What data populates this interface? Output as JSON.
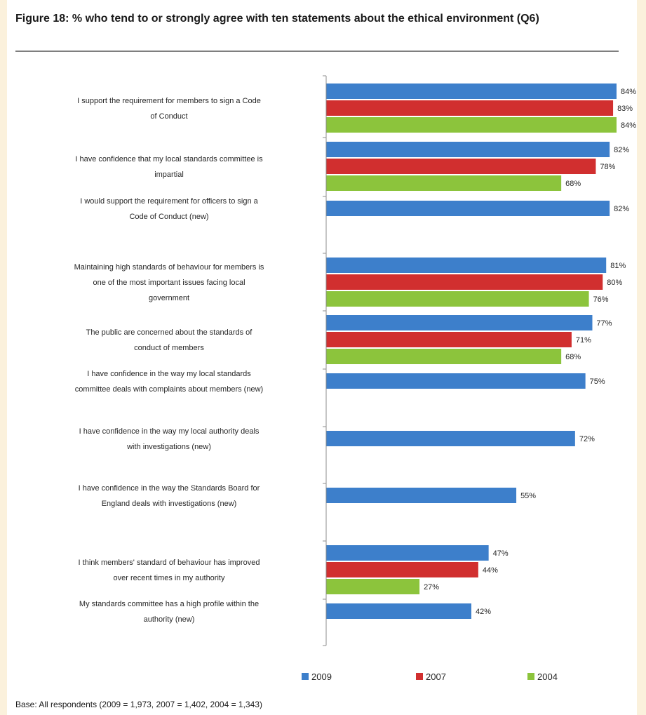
{
  "figure": {
    "title": "Figure 18: % who tend to or strongly agree with ten statements about the ethical environment (Q6)",
    "base_note": "Base: All respondents (2009 = 1,973, 2007 = 1,402, 2004 = 1,343)"
  },
  "chart_data": {
    "type": "bar",
    "orientation": "horizontal",
    "title": "Figure 18: % who tend to or strongly agree with ten statements about the ethical environment (Q6)",
    "xlabel": "",
    "ylabel": "",
    "xlim": [
      0,
      84
    ],
    "grid": false,
    "legend_position": "bottom",
    "categories": [
      [
        "I support the requirement for members to sign a Code",
        "of Conduct"
      ],
      [
        "I have confidence that my local standards committee is",
        "impartial"
      ],
      [
        "I would support the requirement for officers to sign a",
        "Code of Conduct (new)"
      ],
      [
        "Maintaining high standards of behaviour for members is",
        "one of the most important issues facing local",
        "government"
      ],
      [
        "The public are concerned about the standards of",
        "conduct of members"
      ],
      [
        "I have confidence in the way my local standards",
        "committee deals with complaints about members (new)"
      ],
      [
        "I have confidence in the way my local authority deals",
        "with investigations (new)"
      ],
      [
        "I have confidence in the way the Standards Board for",
        "England deals with investigations (new)"
      ],
      [
        "I think members' standard of behaviour has improved",
        "over recent times in my authority"
      ],
      [
        "My standards committee has a high profile within the",
        "authority (new)"
      ]
    ],
    "series": [
      {
        "name": "2009",
        "color": "#3d7fcb",
        "values": [
          84,
          82,
          82,
          81,
          77,
          75,
          72,
          55,
          47,
          42
        ]
      },
      {
        "name": "2007",
        "color": "#d12f2f",
        "values": [
          83,
          78,
          null,
          80,
          71,
          null,
          null,
          null,
          44,
          null
        ]
      },
      {
        "name": "2004",
        "color": "#8cc43c",
        "values": [
          84,
          68,
          null,
          76,
          68,
          null,
          null,
          null,
          27,
          null
        ]
      }
    ]
  }
}
